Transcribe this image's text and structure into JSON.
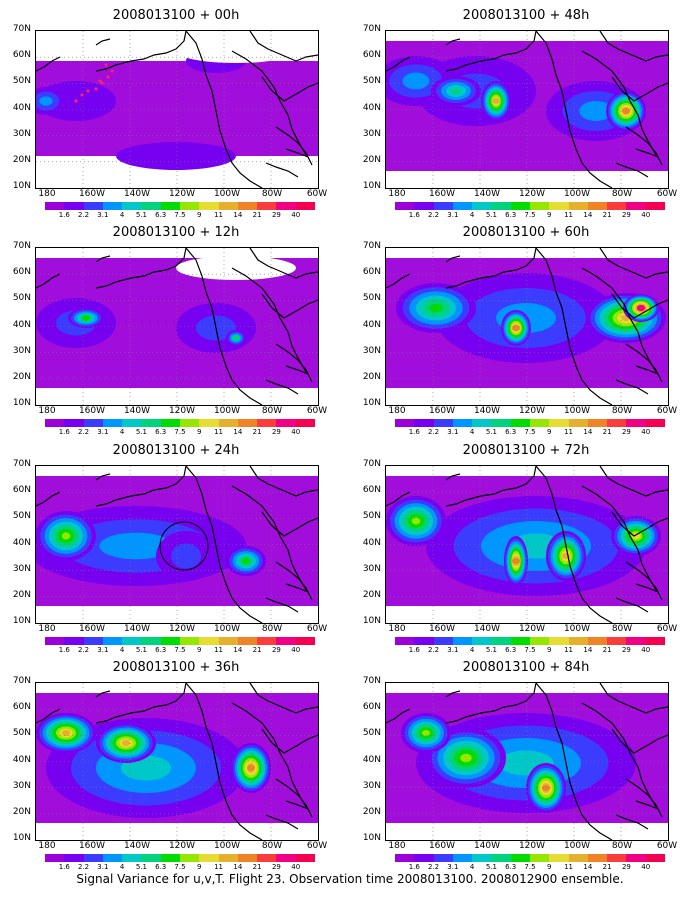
{
  "panels": [
    {
      "id": "p00",
      "title": "2008013100 + 00h"
    },
    {
      "id": "p48",
      "title": "2008013100 + 48h"
    },
    {
      "id": "p12",
      "title": "2008013100 + 12h"
    },
    {
      "id": "p60",
      "title": "2008013100 + 60h"
    },
    {
      "id": "p24",
      "title": "2008013100 + 24h"
    },
    {
      "id": "p72",
      "title": "2008013100 + 72h"
    },
    {
      "id": "p36",
      "title": "2008013100 + 36h"
    },
    {
      "id": "p84",
      "title": "2008013100 + 84h"
    }
  ],
  "lat_labels": [
    "70N",
    "60N",
    "50N",
    "40N",
    "30N",
    "20N",
    "10N"
  ],
  "lon_labels": [
    "180",
    "160W",
    "140W",
    "120W",
    "100W",
    "80W",
    "60W"
  ],
  "colorbar": {
    "levels": [
      "1.6",
      "2.2",
      "3.1",
      "4",
      "5.1",
      "6.3",
      "7.5",
      "9",
      "11",
      "14",
      "21",
      "29",
      "40"
    ],
    "colors": [
      "#9c00d8",
      "#7800f0",
      "#3c3cff",
      "#0096ff",
      "#00c8c8",
      "#00d27d",
      "#00dc00",
      "#96e600",
      "#e6dc32",
      "#e6af2d",
      "#f08228",
      "#fa3c3c",
      "#f00082",
      "#f50050"
    ]
  },
  "caption": "Signal Variance for u,v,T. Flight 23. Observation time 2008013100. 2008012900 ensemble."
}
